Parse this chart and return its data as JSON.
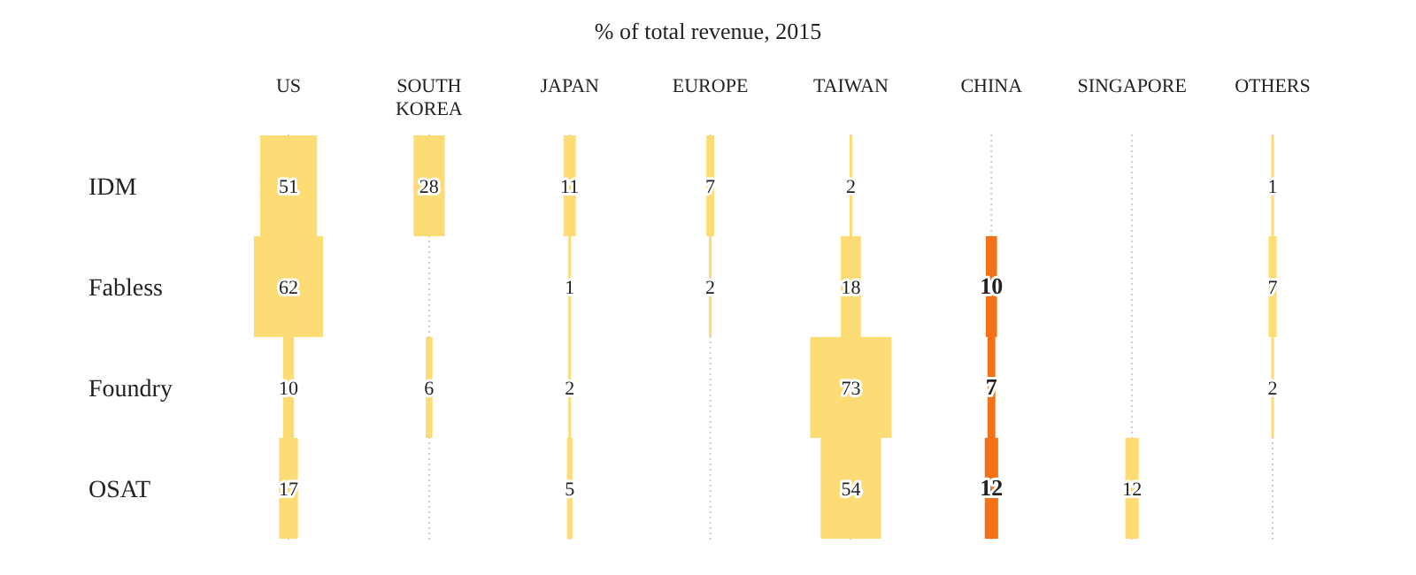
{
  "chart_data": {
    "type": "heatmap",
    "title": "% of total revenue, 2015",
    "categories": [
      "US",
      "SOUTH KOREA",
      "JAPAN",
      "EUROPE",
      "TAIWAN",
      "CHINA",
      "SINGAPORE",
      "OTHERS"
    ],
    "y_categories": [
      "IDM",
      "Fabless",
      "Foundry",
      "OSAT"
    ],
    "colors": [
      "#fddc76",
      "#fddc76",
      "#fddc76",
      "#fddc76",
      "#fddc76",
      "#f47217",
      "#fddc76",
      "#fddc76"
    ],
    "cells": [
      [
        51,
        28,
        11,
        7,
        2,
        null,
        null,
        1
      ],
      [
        62,
        null,
        1,
        2,
        18,
        10,
        null,
        7
      ],
      [
        10,
        6,
        2,
        null,
        73,
        7,
        null,
        2
      ],
      [
        17,
        null,
        5,
        null,
        54,
        12,
        12,
        null
      ]
    ],
    "data_labels": true,
    "grid": "x"
  }
}
